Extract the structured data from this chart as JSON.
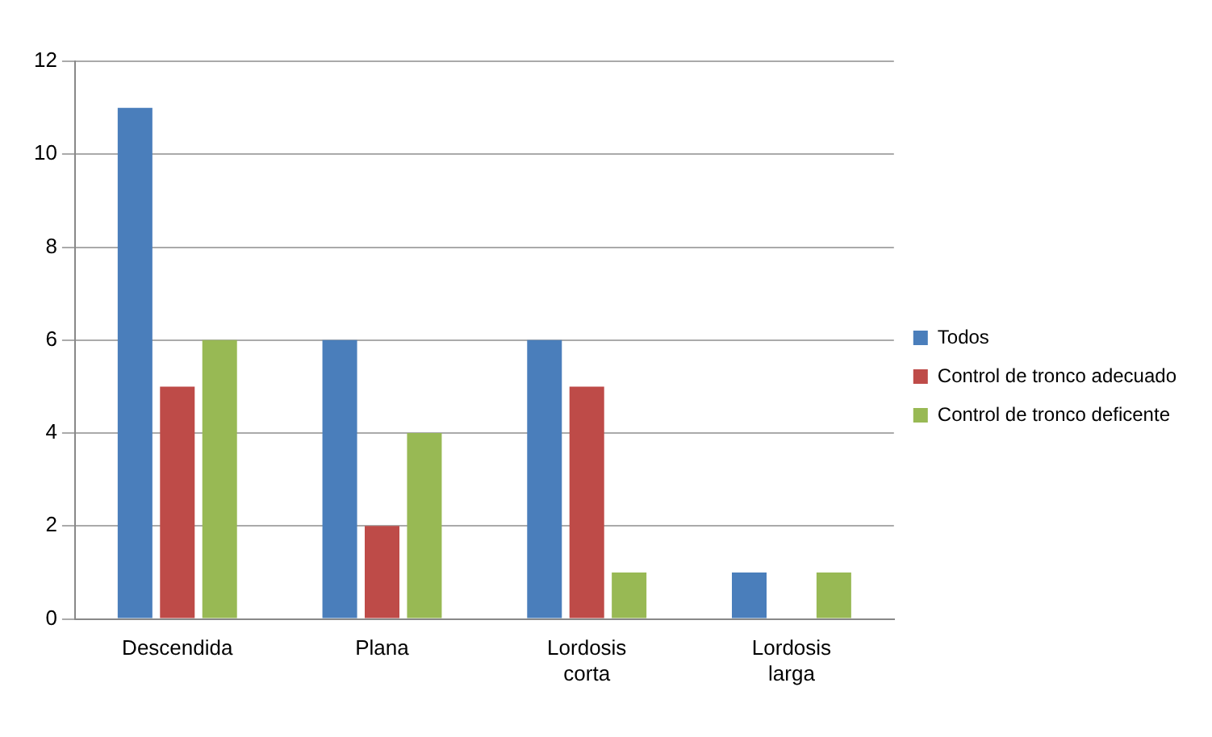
{
  "chart_data": {
    "type": "bar",
    "categories": [
      "Descendida",
      "Plana",
      "Lordosis corta",
      "Lordosis larga"
    ],
    "series": [
      {
        "name": "Todos",
        "color": "#4a7ebb",
        "values": [
          11,
          6,
          6,
          1
        ]
      },
      {
        "name": "Control de tronco adecuado",
        "color": "#be4b48",
        "values": [
          5,
          2,
          5,
          0
        ]
      },
      {
        "name": "Control de tronco deficente",
        "color": "#98b954",
        "values": [
          6,
          4,
          1,
          1
        ]
      }
    ],
    "ylim": [
      0,
      12
    ],
    "yticks": [
      0,
      2,
      4,
      6,
      8,
      10,
      12
    ],
    "grid": "y",
    "legend": "right"
  }
}
